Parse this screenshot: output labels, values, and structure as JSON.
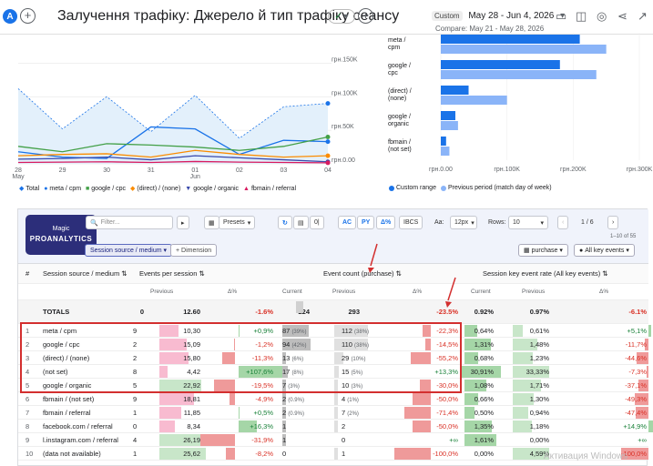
{
  "header": {
    "avatar": "A",
    "title": "Залучення трафіку: Джерело й тип трафіку сеансу",
    "range_tag": "Custom",
    "date_range": "May 28 - Jun 4, 2026",
    "compare": "Compare: May 21 - May 28, 2026"
  },
  "line_chart": {
    "y_ticks": [
      "грн.150K",
      "грн.100K",
      "грн.50K",
      "грн.0.00"
    ],
    "x_ticks": [
      "28",
      "29",
      "30",
      "31",
      "01",
      "02",
      "03",
      "04"
    ],
    "x_sub": [
      "May",
      "",
      "",
      "",
      "Jun",
      "",
      "",
      ""
    ],
    "legend": [
      "Total",
      "meta / cpm",
      "google / cpc",
      "(direct) / (none)",
      "google / organic",
      "fbmain / referral"
    ]
  },
  "chart_data": [
    {
      "type": "line",
      "x": [
        "May 28",
        "May 29",
        "May 30",
        "May 31",
        "Jun 01",
        "Jun 02",
        "Jun 03",
        "Jun 04"
      ],
      "ylim": [
        0,
        160000
      ],
      "series": [
        {
          "name": "Total",
          "color": "#1a73e8",
          "values": [
            112000,
            52000,
            100000,
            48000,
            102000,
            38000,
            85000,
            90000
          ]
        },
        {
          "name": "meta / cpm",
          "color": "#1a73e8",
          "values": [
            18000,
            10000,
            8000,
            55000,
            52000,
            14000,
            35000,
            33000
          ]
        },
        {
          "name": "google / cpc",
          "color": "#43a047",
          "values": [
            26000,
            18000,
            30000,
            28000,
            25000,
            20000,
            26000,
            40000
          ]
        },
        {
          "name": "(direct) / (none)",
          "color": "#fb8c00",
          "values": [
            12000,
            14000,
            15000,
            10000,
            20000,
            14000,
            10000,
            12000
          ]
        },
        {
          "name": "google / organic",
          "color": "#3949ab",
          "values": [
            7000,
            8000,
            10000,
            6000,
            12000,
            9000,
            6000,
            3000
          ]
        },
        {
          "name": "fbmain / referral",
          "color": "#d81b60",
          "values": [
            2000,
            2500,
            3000,
            2000,
            3500,
            2500,
            2000,
            1500
          ]
        }
      ]
    },
    {
      "type": "bar",
      "categories": [
        "meta / cpm",
        "google / cpc",
        "(direct) / (none)",
        "google / organic",
        "fbmain / (not set)"
      ],
      "xlim": [
        0,
        300000
      ],
      "x_ticks": [
        "грн.0.00",
        "грн.100K",
        "грн.200K",
        "грн.300K"
      ],
      "series": [
        {
          "name": "Custom range",
          "color": "#1a73e8",
          "values": [
            210000,
            180000,
            42000,
            22000,
            8000
          ]
        },
        {
          "name": "Previous period (match day of week)",
          "color": "#8ab4f8",
          "values": [
            250000,
            235000,
            100000,
            26000,
            13000
          ]
        }
      ]
    }
  ],
  "toolbar": {
    "magic_top": "Magic",
    "magic_bottom": "PROANALYTICS",
    "filter_placeholder": "Filter...",
    "presets": "Presets",
    "ac": "AC",
    "py": "PY",
    "pct": "Δ%",
    "ibcs": "IBCS",
    "aa": "Aa:",
    "size": "12px",
    "rows_label": "Rows:",
    "rows_value": "10",
    "pager": "1 / 6",
    "range_info": "1–10 of 55",
    "dim_chip": "Session source / medium",
    "add_dim": "+ Dimension",
    "purchase": "purchase",
    "all_events": "All key events"
  },
  "table": {
    "headers": {
      "num": "#",
      "dim": "Session source / medium ⇅",
      "g1": "Events per session ⇅",
      "g2": "Event count (purchase) ⇅",
      "g3": "Session key event rate (All key events) ⇅",
      "prev": "Previous",
      "delta": "Δ%",
      "cur": "Current"
    },
    "totals": {
      "label": "TOTALS",
      "e_cur": "0",
      "e_prev": "12,60",
      "e_d": "-1,6%",
      "c_cur": "224",
      "c_prev": "293",
      "c_d": "-23,5%",
      "r_cur": "0,92%",
      "r_prev": "0,97%",
      "r_d": "-6,1%"
    },
    "rows": [
      {
        "n": "1",
        "dim": "meta / cpm",
        "e_cur": "9",
        "e_prev": "10,30",
        "e_d": "+0,9%",
        "c_cur": "87",
        "c_cur_pct": "(39%)",
        "c_prev": "112",
        "c_prev_pct": "(38%)",
        "c_d": "-22,3%",
        "r_cur": "0,64%",
        "r_prev": "0,61%",
        "r_d": "+5,1%"
      },
      {
        "n": "2",
        "dim": "google / cpc",
        "e_cur": "2",
        "e_prev": "15,09",
        "e_d": "-1,2%",
        "c_cur": "94",
        "c_cur_pct": "(42%)",
        "c_prev": "110",
        "c_prev_pct": "(38%)",
        "c_d": "-14,5%",
        "r_cur": "1,31%",
        "r_prev": "1,48%",
        "r_d": "-11,7%"
      },
      {
        "n": "3",
        "dim": "(direct) / (none)",
        "e_cur": "2",
        "e_prev": "15,80",
        "e_d": "-11,3%",
        "c_cur": "13",
        "c_cur_pct": "(6%)",
        "c_prev": "29",
        "c_prev_pct": "(10%)",
        "c_d": "-55,2%",
        "r_cur": "0,68%",
        "r_prev": "1,23%",
        "r_d": "-44,6%"
      },
      {
        "n": "4",
        "dim": "(not set)",
        "e_cur": "8",
        "e_prev": "4,42",
        "e_d": "+107,6%",
        "c_cur": "17",
        "c_cur_pct": "(8%)",
        "c_prev": "15",
        "c_prev_pct": "(5%)",
        "c_d": "+13,3%",
        "r_cur": "30,91%",
        "r_prev": "33,33%",
        "r_d": "-7,3%"
      },
      {
        "n": "5",
        "dim": "google / organic",
        "e_cur": "5",
        "e_prev": "22,92",
        "e_d": "-19,5%",
        "c_cur": "7",
        "c_cur_pct": "(3%)",
        "c_prev": "10",
        "c_prev_pct": "(3%)",
        "c_d": "-30,0%",
        "r_cur": "1,08%",
        "r_prev": "1,71%",
        "r_d": "-37,1%"
      },
      {
        "n": "6",
        "dim": "fbmain / (not set)",
        "e_cur": "9",
        "e_prev": "18,81",
        "e_d": "-4,9%",
        "c_cur": "2",
        "c_cur_pct": "(0.9%)",
        "c_prev": "4",
        "c_prev_pct": "(1%)",
        "c_d": "-50,0%",
        "r_cur": "0,66%",
        "r_prev": "1,30%",
        "r_d": "-49,3%"
      },
      {
        "n": "7",
        "dim": "fbmain / referral",
        "e_cur": "1",
        "e_prev": "11,85",
        "e_d": "+0,5%",
        "c_cur": "2",
        "c_cur_pct": "(0.9%)",
        "c_prev": "7",
        "c_prev_pct": "(2%)",
        "c_d": "-71,4%",
        "r_cur": "0,50%",
        "r_prev": "0,94%",
        "r_d": "-47,4%"
      },
      {
        "n": "8",
        "dim": "facebook.com / referral",
        "e_cur": "0",
        "e_prev": "8,34",
        "e_d": "+16,3%",
        "c_cur": "1",
        "c_cur_pct": "",
        "c_prev": "2",
        "c_prev_pct": "",
        "c_d": "-50,0%",
        "r_cur": "1,35%",
        "r_prev": "1,18%",
        "r_d": "+14,9%"
      },
      {
        "n": "9",
        "dim": "l.instagram.com / referral",
        "e_cur": "4",
        "e_prev": "26,19",
        "e_d": "-31,9%",
        "c_cur": "1",
        "c_cur_pct": "",
        "c_prev": "0",
        "c_prev_pct": "",
        "c_d": "+∞",
        "r_cur": "1,61%",
        "r_prev": "0,00%",
        "r_d": "+∞"
      },
      {
        "n": "10",
        "dim": "(data not available)",
        "e_cur": "1",
        "e_prev": "25,62",
        "e_d": "-8,2%",
        "c_cur": "0",
        "c_cur_pct": "",
        "c_prev": "1",
        "c_prev_pct": "",
        "c_d": "-100,0%",
        "r_cur": "0,00%",
        "r_prev": "4,59%",
        "r_d": "-100,0%"
      }
    ]
  },
  "watermark": "Активация Windows"
}
